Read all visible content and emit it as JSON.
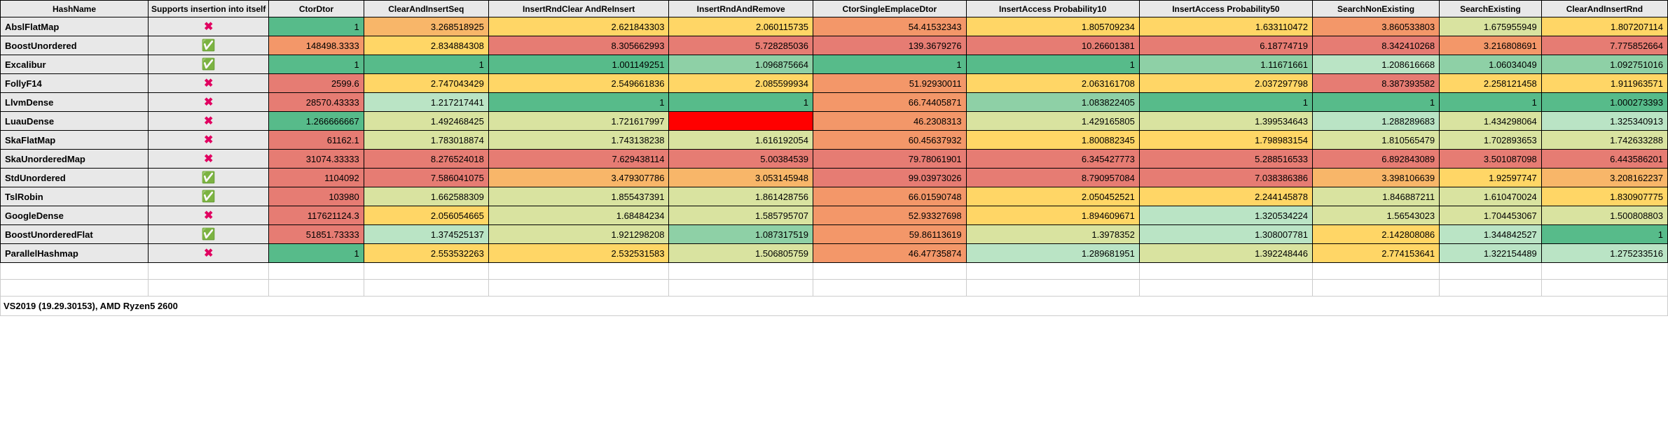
{
  "headers": {
    "hashname": "HashName",
    "supports": "Supports insertion into itself",
    "ctordtor": "CtorDtor",
    "clearinsertseq": "ClearAndInsertSeq",
    "insertrndclearreinsert": "InsertRndClear AndReInsert",
    "insertrndremove": "InsertRndAndRemove",
    "ctorsingleemplace": "CtorSingleEmplaceDtor",
    "insertaccess10": "InsertAccess Probability10",
    "insertaccess50": "InsertAccess Probability50",
    "searchnon": "SearchNonExisting",
    "searchexist": "SearchExisting",
    "clearinsertrnd": "ClearAndInsertRnd"
  },
  "colors": {
    "green_best": "#57bb8a",
    "green_good": "#8ed0a6",
    "green_light": "#bae4c5",
    "yellow_green": "#d9e3a0",
    "yellow": "#ffd666",
    "orange": "#f8b669",
    "orange_red": "#f39769",
    "red": "#e67c73",
    "full_red": "#ff0000"
  },
  "rows": [
    {
      "name": "AbslFlatMap",
      "supports": false,
      "cells": [
        {
          "v": "1",
          "c": "#57bb8a"
        },
        {
          "v": "3.268518925",
          "c": "#f8b669"
        },
        {
          "v": "2.621843303",
          "c": "#ffd666"
        },
        {
          "v": "2.060115735",
          "c": "#ffd666"
        },
        {
          "v": "54.41532343",
          "c": "#f39769"
        },
        {
          "v": "1.805709234",
          "c": "#ffd666"
        },
        {
          "v": "1.633110472",
          "c": "#ffd666"
        },
        {
          "v": "3.860533803",
          "c": "#f39769"
        },
        {
          "v": "1.675955949",
          "c": "#d9e3a0"
        },
        {
          "v": "1.807207114",
          "c": "#ffd666"
        }
      ]
    },
    {
      "name": "BoostUnordered",
      "supports": true,
      "cells": [
        {
          "v": "148498.3333",
          "c": "#f39769"
        },
        {
          "v": "2.834884308",
          "c": "#ffd666"
        },
        {
          "v": "8.305662993",
          "c": "#e67c73"
        },
        {
          "v": "5.728285036",
          "c": "#e67c73"
        },
        {
          "v": "139.3679276",
          "c": "#e67c73"
        },
        {
          "v": "10.26601381",
          "c": "#e67c73"
        },
        {
          "v": "6.18774719",
          "c": "#e67c73"
        },
        {
          "v": "8.342410268",
          "c": "#e67c73"
        },
        {
          "v": "3.216808691",
          "c": "#f39769"
        },
        {
          "v": "7.775852664",
          "c": "#e67c73"
        }
      ]
    },
    {
      "name": "Excalibur",
      "supports": true,
      "cells": [
        {
          "v": "1",
          "c": "#57bb8a"
        },
        {
          "v": "1",
          "c": "#57bb8a"
        },
        {
          "v": "1.001149251",
          "c": "#57bb8a"
        },
        {
          "v": "1.096875664",
          "c": "#8ed0a6"
        },
        {
          "v": "1",
          "c": "#57bb8a"
        },
        {
          "v": "1",
          "c": "#57bb8a"
        },
        {
          "v": "1.11671661",
          "c": "#8ed0a6"
        },
        {
          "v": "1.208616668",
          "c": "#bae4c5"
        },
        {
          "v": "1.06034049",
          "c": "#8ed0a6"
        },
        {
          "v": "1.092751016",
          "c": "#8ed0a6"
        }
      ]
    },
    {
      "name": "FollyF14",
      "supports": false,
      "cells": [
        {
          "v": "2599.6",
          "c": "#e67c73"
        },
        {
          "v": "2.747043429",
          "c": "#ffd666"
        },
        {
          "v": "2.549661836",
          "c": "#ffd666"
        },
        {
          "v": "2.085599934",
          "c": "#ffd666"
        },
        {
          "v": "51.92930011",
          "c": "#f39769"
        },
        {
          "v": "2.063161708",
          "c": "#ffd666"
        },
        {
          "v": "2.037297798",
          "c": "#ffd666"
        },
        {
          "v": "8.387393582",
          "c": "#e67c73"
        },
        {
          "v": "2.258121458",
          "c": "#ffd666"
        },
        {
          "v": "1.911963571",
          "c": "#ffd666"
        }
      ]
    },
    {
      "name": "LlvmDense",
      "supports": false,
      "cells": [
        {
          "v": "28570.43333",
          "c": "#e67c73"
        },
        {
          "v": "1.217217441",
          "c": "#bae4c5"
        },
        {
          "v": "1",
          "c": "#57bb8a"
        },
        {
          "v": "1",
          "c": "#57bb8a"
        },
        {
          "v": "66.74405871",
          "c": "#f39769"
        },
        {
          "v": "1.083822405",
          "c": "#8ed0a6"
        },
        {
          "v": "1",
          "c": "#57bb8a"
        },
        {
          "v": "1",
          "c": "#57bb8a"
        },
        {
          "v": "1",
          "c": "#57bb8a"
        },
        {
          "v": "1.000273393",
          "c": "#57bb8a"
        }
      ]
    },
    {
      "name": "LuauDense",
      "supports": false,
      "cells": [
        {
          "v": "1.266666667",
          "c": "#57bb8a"
        },
        {
          "v": "1.492468425",
          "c": "#d9e3a0"
        },
        {
          "v": "1.721617997",
          "c": "#d9e3a0"
        },
        {
          "v": "",
          "c": "#ff0000"
        },
        {
          "v": "46.2308313",
          "c": "#f39769"
        },
        {
          "v": "1.429165805",
          "c": "#d9e3a0"
        },
        {
          "v": "1.399534643",
          "c": "#d9e3a0"
        },
        {
          "v": "1.288289683",
          "c": "#bae4c5"
        },
        {
          "v": "1.434298064",
          "c": "#d9e3a0"
        },
        {
          "v": "1.325340913",
          "c": "#bae4c5"
        }
      ]
    },
    {
      "name": "SkaFlatMap",
      "supports": false,
      "cells": [
        {
          "v": "61162.1",
          "c": "#e67c73"
        },
        {
          "v": "1.783018874",
          "c": "#d9e3a0"
        },
        {
          "v": "1.743138238",
          "c": "#d9e3a0"
        },
        {
          "v": "1.616192054",
          "c": "#d9e3a0"
        },
        {
          "v": "60.45637932",
          "c": "#f39769"
        },
        {
          "v": "1.800882345",
          "c": "#ffd666"
        },
        {
          "v": "1.798983154",
          "c": "#ffd666"
        },
        {
          "v": "1.810565479",
          "c": "#d9e3a0"
        },
        {
          "v": "1.702893653",
          "c": "#d9e3a0"
        },
        {
          "v": "1.742633288",
          "c": "#d9e3a0"
        }
      ]
    },
    {
      "name": "SkaUnorderedMap",
      "supports": false,
      "cells": [
        {
          "v": "31074.33333",
          "c": "#e67c73"
        },
        {
          "v": "8.276524018",
          "c": "#e67c73"
        },
        {
          "v": "7.629438114",
          "c": "#e67c73"
        },
        {
          "v": "5.00384539",
          "c": "#e67c73"
        },
        {
          "v": "79.78061901",
          "c": "#e67c73"
        },
        {
          "v": "6.345427773",
          "c": "#e67c73"
        },
        {
          "v": "5.288516533",
          "c": "#e67c73"
        },
        {
          "v": "6.892843089",
          "c": "#e67c73"
        },
        {
          "v": "3.501087098",
          "c": "#e67c73"
        },
        {
          "v": "6.443586201",
          "c": "#e67c73"
        }
      ]
    },
    {
      "name": "StdUnordered",
      "supports": true,
      "cells": [
        {
          "v": "1104092",
          "c": "#e67c73"
        },
        {
          "v": "7.586041075",
          "c": "#e67c73"
        },
        {
          "v": "3.479307786",
          "c": "#f8b669"
        },
        {
          "v": "3.053145948",
          "c": "#f8b669"
        },
        {
          "v": "99.03973026",
          "c": "#e67c73"
        },
        {
          "v": "8.790957084",
          "c": "#e67c73"
        },
        {
          "v": "7.038386386",
          "c": "#e67c73"
        },
        {
          "v": "3.398106639",
          "c": "#f8b669"
        },
        {
          "v": "1.92597747",
          "c": "#ffd666"
        },
        {
          "v": "3.208162237",
          "c": "#f8b669"
        }
      ]
    },
    {
      "name": "TslRobin",
      "supports": true,
      "cells": [
        {
          "v": "103980",
          "c": "#e67c73"
        },
        {
          "v": "1.662588309",
          "c": "#d9e3a0"
        },
        {
          "v": "1.855437391",
          "c": "#d9e3a0"
        },
        {
          "v": "1.861428756",
          "c": "#d9e3a0"
        },
        {
          "v": "66.01590748",
          "c": "#f39769"
        },
        {
          "v": "2.050452521",
          "c": "#ffd666"
        },
        {
          "v": "2.244145878",
          "c": "#ffd666"
        },
        {
          "v": "1.846887211",
          "c": "#d9e3a0"
        },
        {
          "v": "1.610470024",
          "c": "#d9e3a0"
        },
        {
          "v": "1.830907775",
          "c": "#ffd666"
        }
      ]
    },
    {
      "name": "GoogleDense",
      "supports": false,
      "cells": [
        {
          "v": "117621124.3",
          "c": "#e67c73"
        },
        {
          "v": "2.056054665",
          "c": "#ffd666"
        },
        {
          "v": "1.68484234",
          "c": "#d9e3a0"
        },
        {
          "v": "1.585795707",
          "c": "#d9e3a0"
        },
        {
          "v": "52.93327698",
          "c": "#f39769"
        },
        {
          "v": "1.894609671",
          "c": "#ffd666"
        },
        {
          "v": "1.320534224",
          "c": "#bae4c5"
        },
        {
          "v": "1.56543023",
          "c": "#d9e3a0"
        },
        {
          "v": "1.704453067",
          "c": "#d9e3a0"
        },
        {
          "v": "1.500808803",
          "c": "#d9e3a0"
        }
      ]
    },
    {
      "name": "BoostUnorderedFlat",
      "supports": true,
      "cells": [
        {
          "v": "51851.73333",
          "c": "#e67c73"
        },
        {
          "v": "1.374525137",
          "c": "#bae4c5"
        },
        {
          "v": "1.921298208",
          "c": "#d9e3a0"
        },
        {
          "v": "1.087317519",
          "c": "#8ed0a6"
        },
        {
          "v": "59.86113619",
          "c": "#f39769"
        },
        {
          "v": "1.3978352",
          "c": "#d9e3a0"
        },
        {
          "v": "1.308007781",
          "c": "#bae4c5"
        },
        {
          "v": "2.142808086",
          "c": "#ffd666"
        },
        {
          "v": "1.344842527",
          "c": "#bae4c5"
        },
        {
          "v": "1",
          "c": "#57bb8a"
        }
      ]
    },
    {
      "name": "ParallelHashmap",
      "supports": false,
      "cells": [
        {
          "v": "1",
          "c": "#57bb8a"
        },
        {
          "v": "2.553532263",
          "c": "#ffd666"
        },
        {
          "v": "2.532531583",
          "c": "#ffd666"
        },
        {
          "v": "1.506805759",
          "c": "#d9e3a0"
        },
        {
          "v": "46.47735874",
          "c": "#f39769"
        },
        {
          "v": "1.289681951",
          "c": "#bae4c5"
        },
        {
          "v": "1.392248446",
          "c": "#d9e3a0"
        },
        {
          "v": "2.774153641",
          "c": "#ffd666"
        },
        {
          "v": "1.322154489",
          "c": "#bae4c5"
        },
        {
          "v": "1.275233516",
          "c": "#bae4c5"
        }
      ]
    }
  ],
  "footer": "VS2019 (19.29.30153), AMD Ryzen5 2600"
}
